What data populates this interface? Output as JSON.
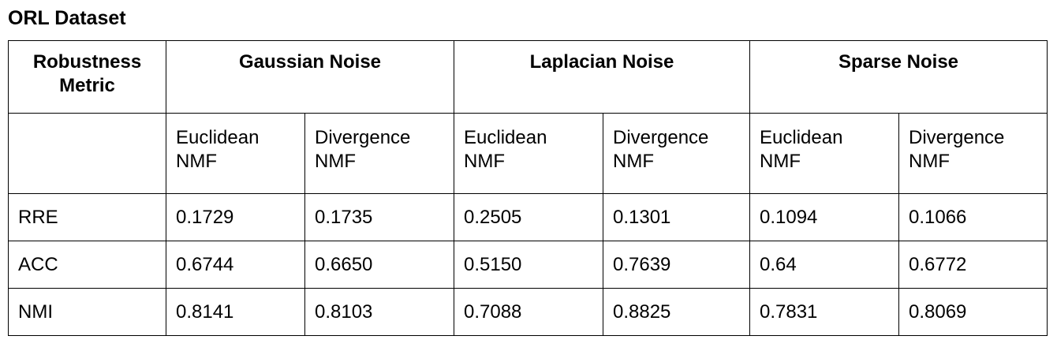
{
  "title": "ORL Dataset",
  "header": {
    "metric_label_line1": "Robustness",
    "metric_label_line2": "Metric",
    "groups": [
      "Gaussian Noise",
      "Laplacian Noise",
      "Sparse Noise"
    ]
  },
  "subheader": [
    {
      "line1": "Euclidean",
      "line2": "NMF"
    },
    {
      "line1": "Divergence",
      "line2": "NMF"
    },
    {
      "line1": "Euclidean",
      "line2": "NMF"
    },
    {
      "line1": "Divergence",
      "line2": "NMF"
    },
    {
      "line1": "Euclidean",
      "line2": "NMF"
    },
    {
      "line1": "Divergence",
      "line2": "NMF"
    }
  ],
  "rows": [
    {
      "metric": "RRE",
      "values": [
        "0.1729",
        "0.1735",
        "0.2505",
        "0.1301",
        "0.1094",
        "0.1066"
      ]
    },
    {
      "metric": "ACC",
      "values": [
        "0.6744",
        "0.6650",
        "0.5150",
        "0.7639",
        "0.64",
        "0.6772"
      ]
    },
    {
      "metric": "NMI",
      "values": [
        "0.8141",
        "0.8103",
        "0.7088",
        "0.8825",
        "0.7831",
        "0.8069"
      ]
    }
  ]
}
